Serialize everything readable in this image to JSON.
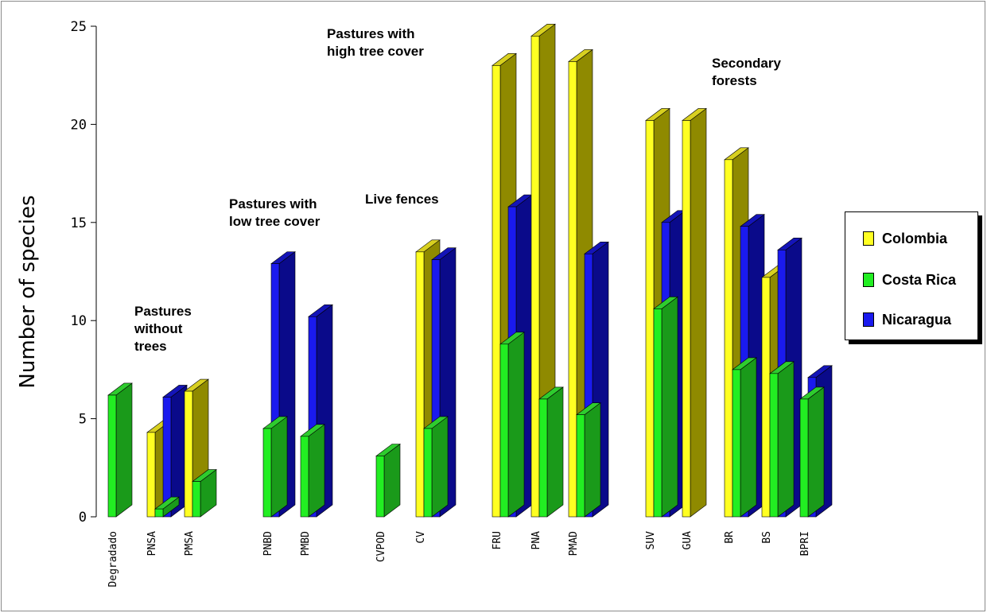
{
  "chart_data": {
    "type": "bar",
    "ylabel": "Number of species",
    "ylim": [
      0,
      25
    ],
    "yticks": [
      "0",
      "5",
      "10",
      "15",
      "20",
      "25"
    ],
    "categories": [
      "Degradado",
      "PNSA",
      "PMSA",
      "PNBD",
      "PMBD",
      "CVPOD",
      "CV",
      "FRU",
      "PNA",
      "PMAD",
      "SUV",
      "GUA",
      "BR",
      "BS",
      "BPRI"
    ],
    "series": [
      {
        "name": "Colombia",
        "color": "#ffff22",
        "values": [
          null,
          4.3,
          6.4,
          null,
          null,
          null,
          13.5,
          23.0,
          24.5,
          23.2,
          20.2,
          20.2,
          18.2,
          12.2,
          null
        ]
      },
      {
        "name": "Costa Rica",
        "color": "#22ee22",
        "values": [
          6.2,
          0.4,
          1.8,
          4.5,
          4.1,
          3.1,
          4.5,
          8.8,
          6.0,
          5.2,
          10.6,
          null,
          7.5,
          7.3,
          6.0
        ]
      },
      {
        "name": "Nicaragua",
        "color": "#1a1aee",
        "values": [
          null,
          6.1,
          null,
          12.9,
          10.2,
          null,
          13.1,
          15.8,
          null,
          13.4,
          15.0,
          null,
          14.8,
          13.6,
          7.1
        ]
      }
    ],
    "groups": [
      {
        "label": "Pastures without trees"
      },
      {
        "label": "Pastures with low tree cover"
      },
      {
        "label": "Live fences"
      },
      {
        "label": "Pastures with high tree cover"
      },
      {
        "label": "Secondary forests"
      }
    ],
    "legend": {
      "placement": "right",
      "entries": [
        "Colombia",
        "Costa Rica",
        "Nicaragua"
      ]
    }
  }
}
